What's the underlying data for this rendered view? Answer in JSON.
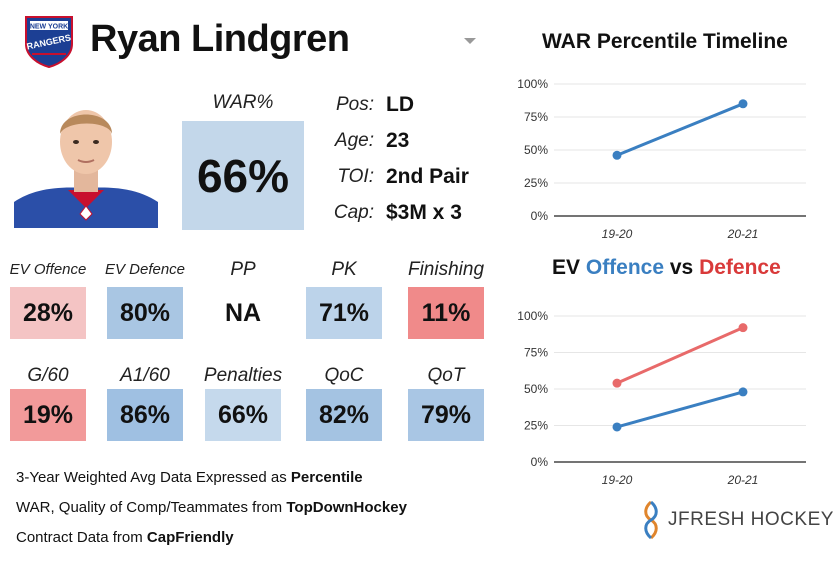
{
  "header": {
    "player_name": "Ryan Lindgren",
    "team_logo_icon": "new-york-rangers-logo",
    "logo_text_top": "NEW YORK",
    "logo_text_mid": "RANGERS"
  },
  "war": {
    "label": "WAR%",
    "value": "66%",
    "color": "#c3d7ea"
  },
  "info": [
    {
      "label": "Pos:",
      "value": "LD"
    },
    {
      "label": "Age:",
      "value": "23"
    },
    {
      "label": "TOI:",
      "value": "2nd Pair"
    },
    {
      "label": "Cap:",
      "value": "$3M x 3"
    }
  ],
  "metrics_row1": [
    {
      "label": "EV Offence",
      "value": "28%",
      "color": "#f4c4c4"
    },
    {
      "label": "EV Defence",
      "value": "80%",
      "color": "#a9c6e3"
    },
    {
      "label": "PP",
      "value": "NA",
      "color": "#ffffff"
    },
    {
      "label": "PK",
      "value": "71%",
      "color": "#bcd3ea"
    },
    {
      "label": "Finishing",
      "value": "11%",
      "color": "#f08a8a"
    }
  ],
  "metrics_row2": [
    {
      "label": "G/60",
      "value": "19%",
      "color": "#f29a9a"
    },
    {
      "label": "A1/60",
      "value": "86%",
      "color": "#9fc0e2"
    },
    {
      "label": "Penalties",
      "value": "66%",
      "color": "#c5d9ec"
    },
    {
      "label": "QoC",
      "value": "82%",
      "color": "#a4c3e2"
    },
    {
      "label": "QoT",
      "value": "79%",
      "color": "#a9c6e4"
    }
  ],
  "footnotes": [
    {
      "text": "3-Year Weighted Avg Data Expressed as ",
      "bold": "Percentile"
    },
    {
      "text": "WAR, Quality of Comp/Teammates from ",
      "bold": "TopDownHockey"
    },
    {
      "text": "Contract Data from ",
      "bold": "CapFriendly"
    }
  ],
  "chart_data": [
    {
      "type": "line",
      "title": "WAR Percentile Timeline",
      "x": [
        "19-20",
        "20-21"
      ],
      "y_ticks": [
        "0%",
        "25%",
        "50%",
        "75%",
        "100%"
      ],
      "ylim": [
        0,
        100
      ],
      "grid": true,
      "series": [
        {
          "values": [
            46,
            85
          ],
          "color": "#3a7fc1"
        }
      ]
    },
    {
      "type": "line",
      "title_parts": [
        {
          "text": "EV ",
          "color": "#111111"
        },
        {
          "text": "Offence",
          "color": "#3a7fc1"
        },
        {
          "text": " vs ",
          "color": "#111111"
        },
        {
          "text": "Defence",
          "color": "#d93a3a"
        }
      ],
      "x": [
        "19-20",
        "20-21"
      ],
      "y_ticks": [
        "0%",
        "25%",
        "50%",
        "75%",
        "100%"
      ],
      "ylim": [
        0,
        100
      ],
      "grid": true,
      "series": [
        {
          "values": [
            54,
            92
          ],
          "color": "#e86a6a"
        },
        {
          "values": [
            24,
            48
          ],
          "color": "#3a7fc1"
        }
      ]
    }
  ],
  "brand": {
    "text": "JFRESH HOCKEY"
  }
}
